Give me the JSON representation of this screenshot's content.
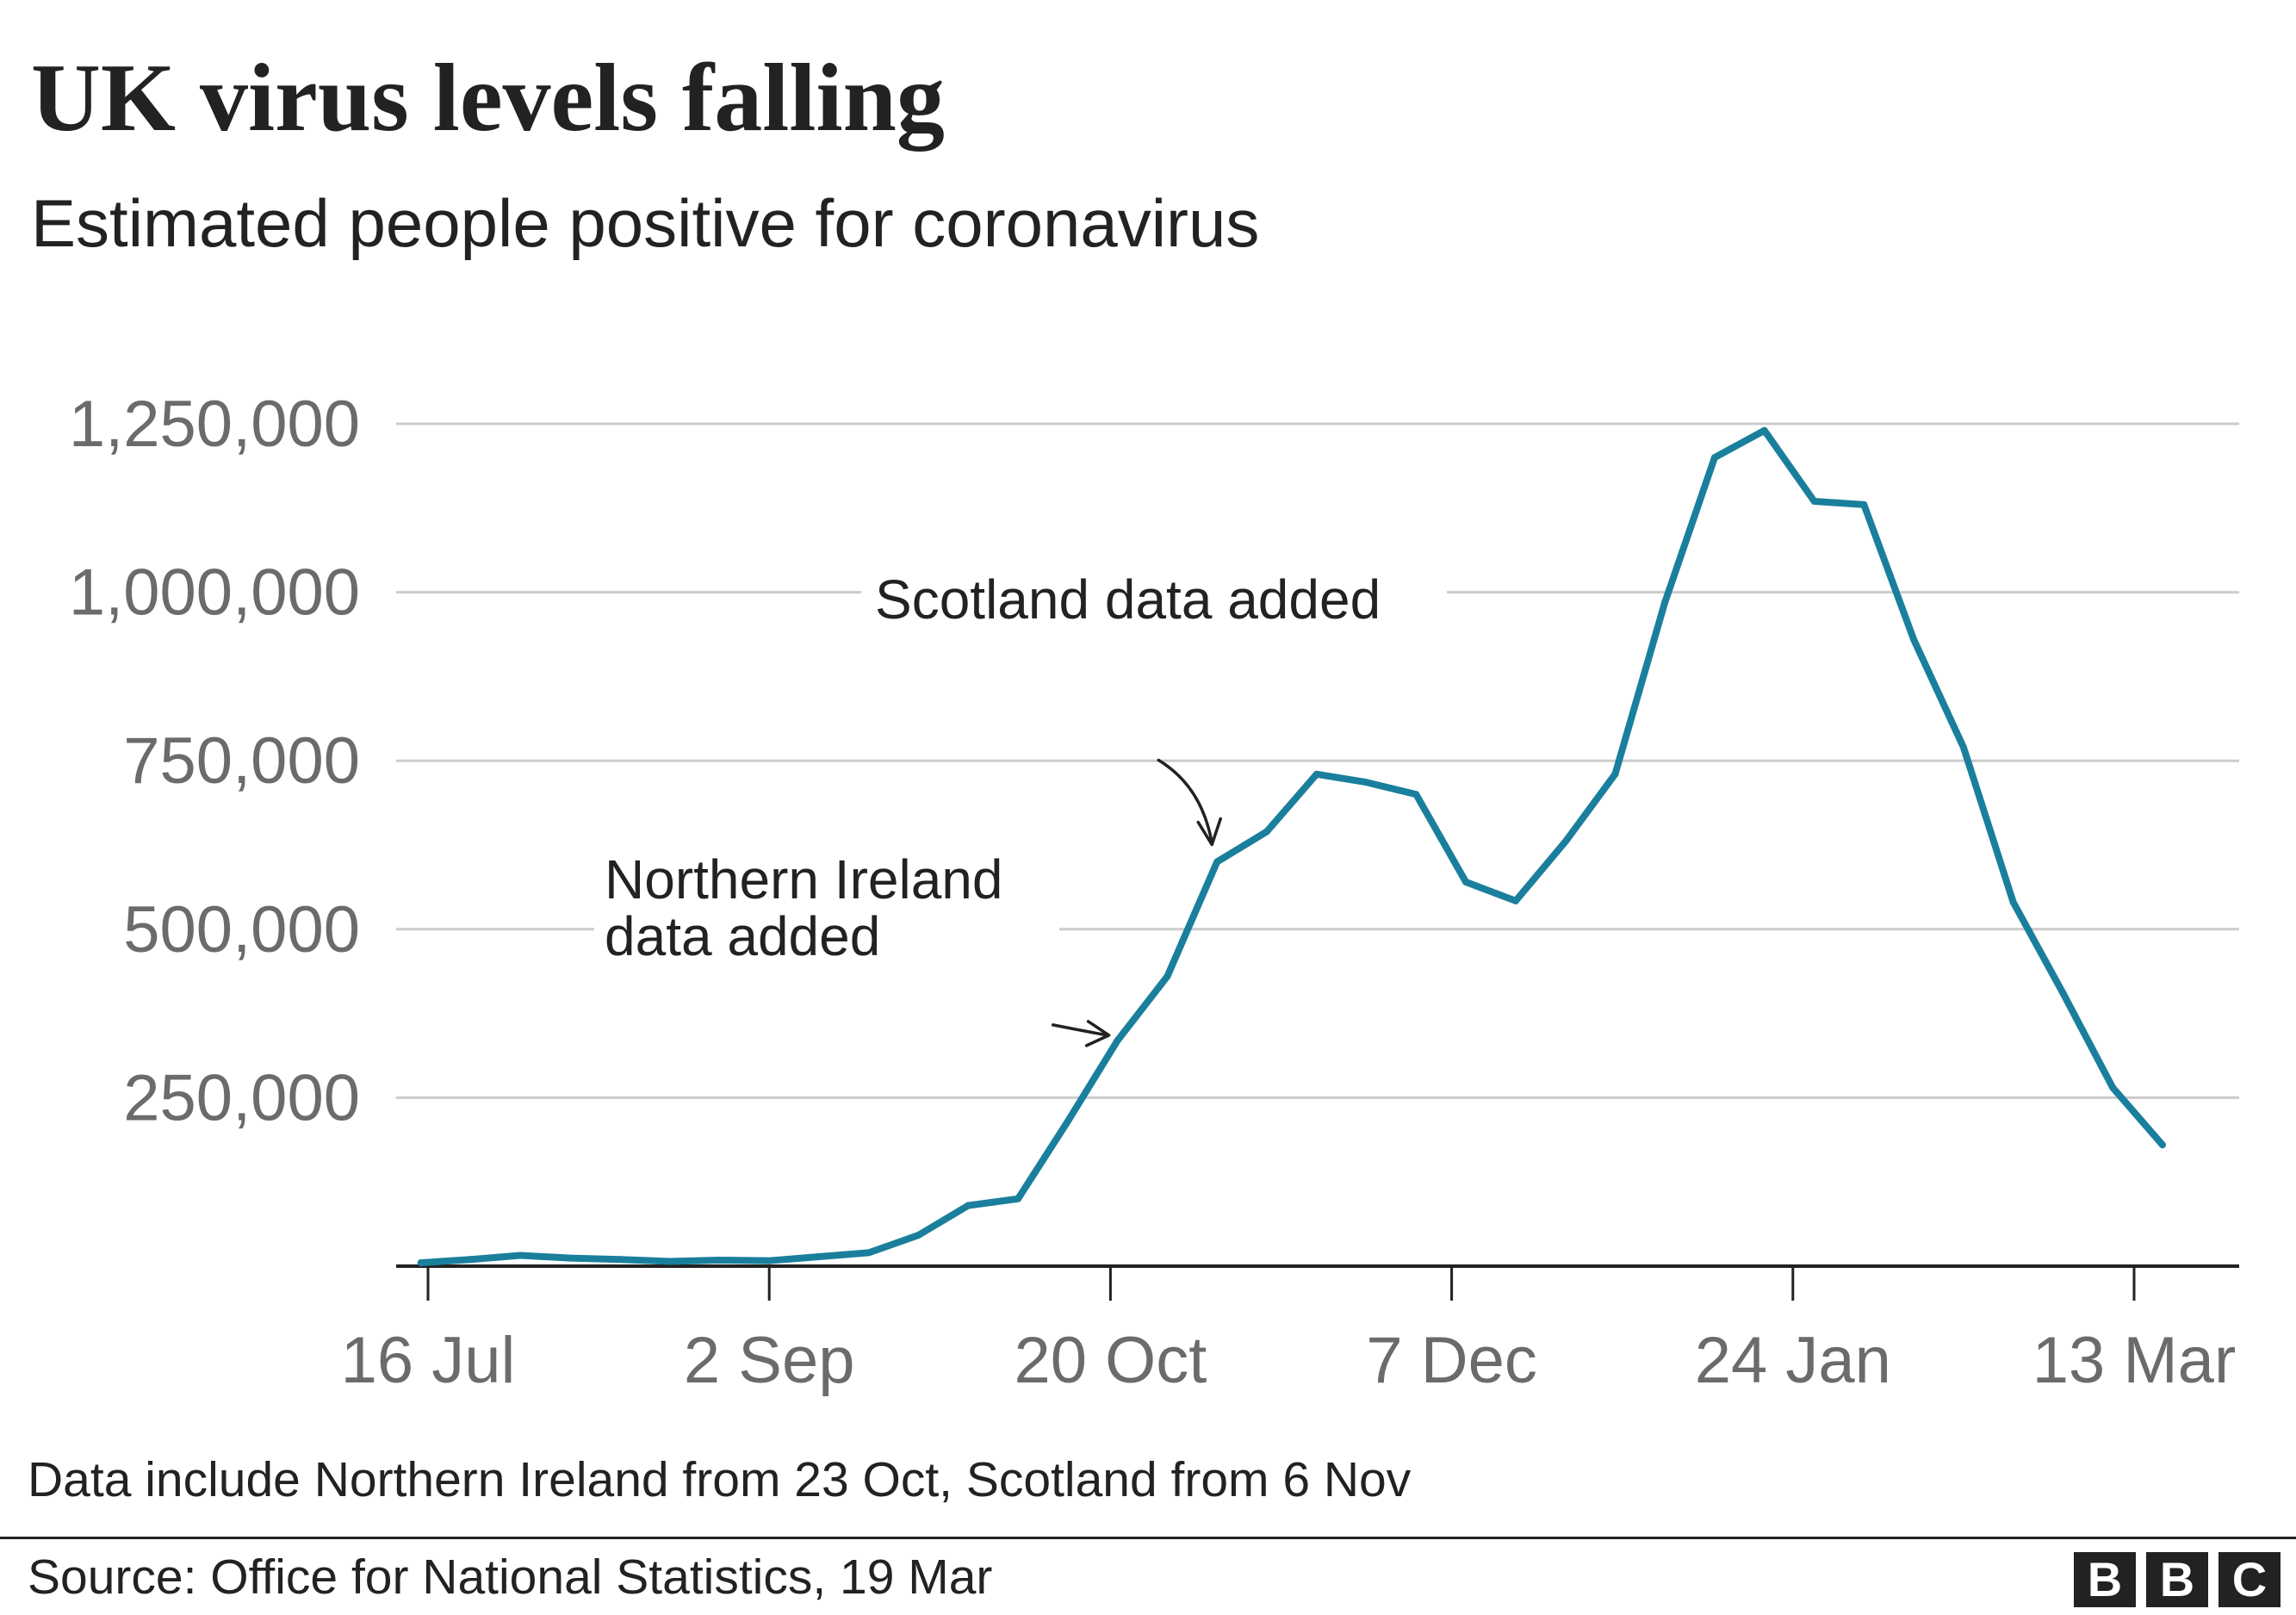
{
  "header": {
    "title": "UK virus levels falling",
    "subtitle": "Estimated people positive for coronavirus"
  },
  "footer": {
    "note": "Data include Northern Ireland from 23 Oct, Scotland from 6 Nov",
    "source": "Source: Office for National Statistics, 19 Mar",
    "logo_letters": [
      "B",
      "B",
      "C"
    ]
  },
  "colors": {
    "line": "#1a7f9c",
    "grid": "#cccccc",
    "axis": "#222222",
    "tick_text": "#6b6b6b",
    "annotation_text": "#222222"
  },
  "chart_data": {
    "type": "line",
    "title": "UK virus levels falling",
    "subtitle": "Estimated people positive for coronavirus",
    "xlabel": "",
    "ylabel": "",
    "grid": true,
    "y_ticks": [
      250000,
      500000,
      750000,
      1000000,
      1250000
    ],
    "y_tick_labels": [
      "250,000",
      "500,000",
      "750,000",
      "1,000,000",
      "1,250,000"
    ],
    "ylim": [
      0,
      1250000
    ],
    "x_ticks": [
      "2020-07-16",
      "2020-09-02",
      "2020-10-20",
      "2020-12-07",
      "2021-01-24",
      "2021-03-13"
    ],
    "x_tick_labels": [
      "16 Jul",
      "2 Sep",
      "20 Oct",
      "7 Dec",
      "24 Jan",
      "13 Mar"
    ],
    "xlim": [
      "2020-07-15",
      "2021-03-22"
    ],
    "series": [
      {
        "x": [
          "2020-07-15",
          "2020-07-22",
          "2020-07-29",
          "2020-08-05",
          "2020-08-12",
          "2020-08-19",
          "2020-08-26",
          "2020-09-02",
          "2020-09-09",
          "2020-09-16",
          "2020-09-23",
          "2020-09-30",
          "2020-10-07",
          "2020-10-14",
          "2020-10-21",
          "2020-10-28",
          "2020-11-04",
          "2020-11-11",
          "2020-11-18",
          "2020-11-25",
          "2020-12-02",
          "2020-12-09",
          "2020-12-16",
          "2020-12-23",
          "2020-12-30",
          "2021-01-06",
          "2021-01-13",
          "2021-01-20",
          "2021-01-27",
          "2021-02-03",
          "2021-02-10",
          "2021-02-17",
          "2021-02-24",
          "2021-03-03",
          "2021-03-10",
          "2021-03-17"
        ],
        "y": [
          5000,
          10000,
          16000,
          12000,
          10000,
          7000,
          9000,
          8000,
          14000,
          20000,
          46000,
          90000,
          100000,
          215000,
          335000,
          430000,
          600000,
          645000,
          730000,
          718000,
          700000,
          570000,
          542000,
          630000,
          730000,
          985000,
          1200000,
          1240000,
          1135000,
          1130000,
          930000,
          770000,
          540000,
          405000,
          265000,
          180000
        ]
      }
    ],
    "annotations": [
      {
        "text_lines": [
          "Scotland data added"
        ],
        "points_to": "2020-11-04"
      },
      {
        "text_lines": [
          "Northern Ireland",
          "data added"
        ],
        "points_to": "2020-10-21"
      }
    ]
  }
}
